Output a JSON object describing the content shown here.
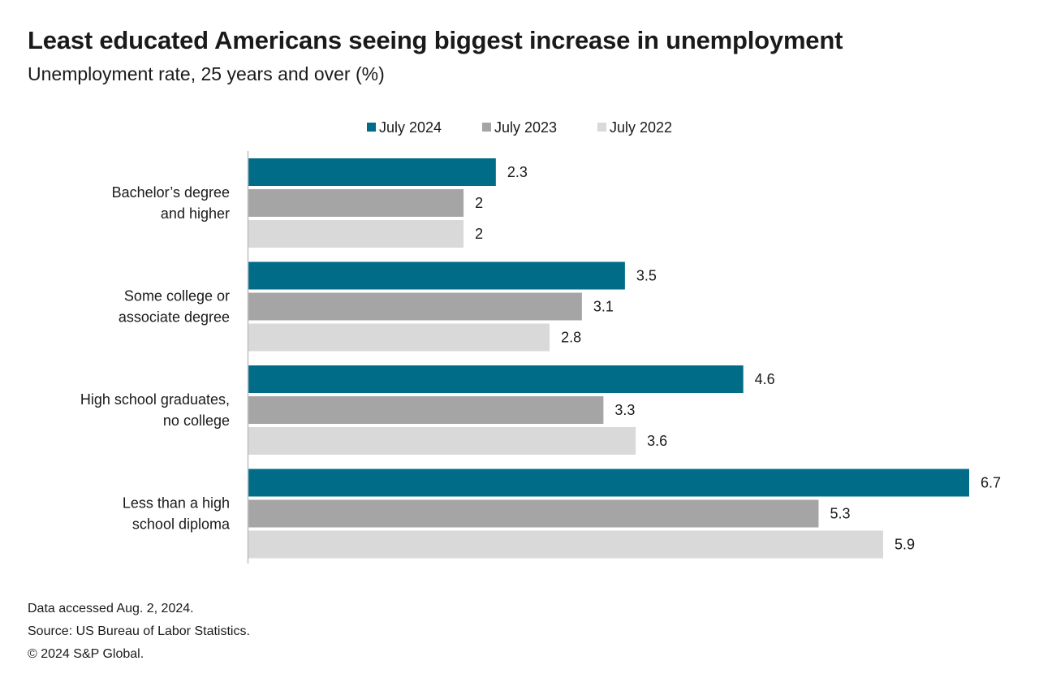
{
  "chart_data": {
    "type": "bar",
    "orientation": "horizontal",
    "title": "Least educated Americans seeing biggest increase in unemployment",
    "subtitle": "Unemployment rate, 25 years and over (%)",
    "categories": [
      [
        "Bachelor’s degree",
        "and higher"
      ],
      [
        "Some college or",
        "associate degree"
      ],
      [
        "High school graduates,",
        "no college"
      ],
      [
        "Less than a high",
        "school diploma"
      ]
    ],
    "series": [
      {
        "name": "July 2024",
        "color": "#006c87",
        "values": [
          2.3,
          3.5,
          4.6,
          6.7
        ]
      },
      {
        "name": "July 2023",
        "color": "#a5a5a5",
        "values": [
          2,
          3.1,
          3.3,
          5.3
        ]
      },
      {
        "name": "July 2022",
        "color": "#d9d9d9",
        "values": [
          2,
          2.8,
          3.6,
          5.9
        ]
      }
    ],
    "legend_position": "top-center",
    "data_labels": true,
    "grid": false
  },
  "footnotes": {
    "accessed": "Data accessed Aug. 2, 2024.",
    "source": "Source: US Bureau of Labor Statistics.",
    "copyright": "© 2024 S&P Global."
  }
}
